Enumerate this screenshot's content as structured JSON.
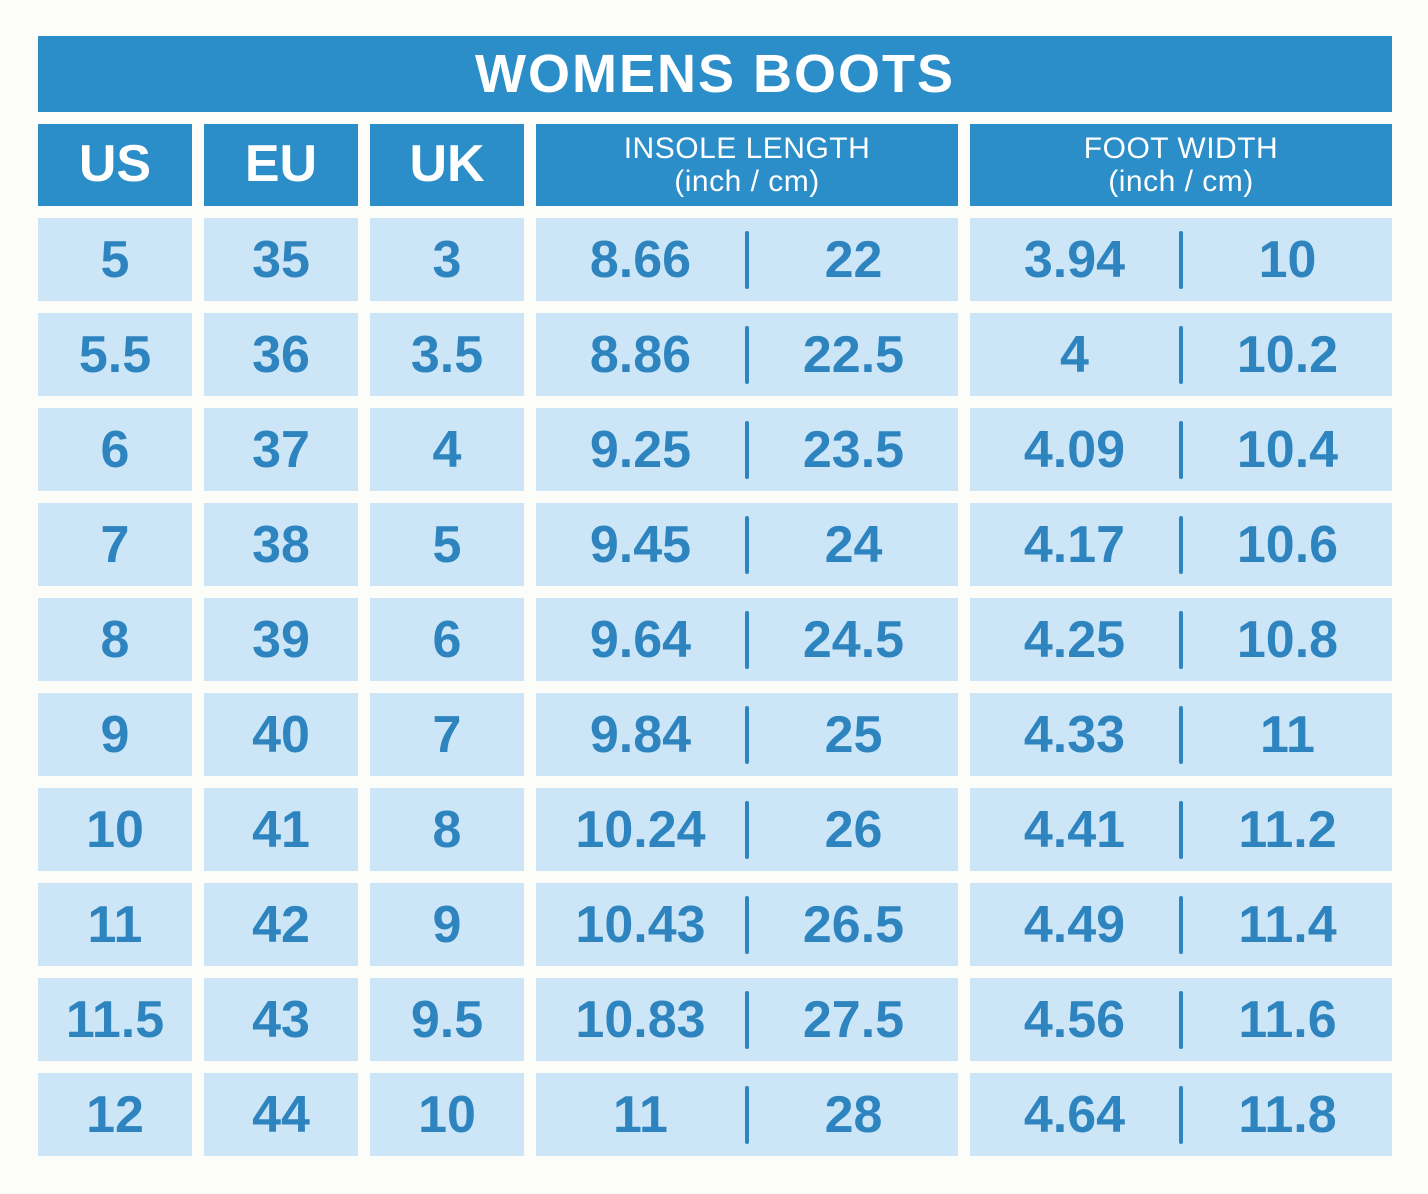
{
  "chart_data": {
    "type": "table",
    "title": "WOMENS BOOTS",
    "columns": [
      "US",
      "EU",
      "UK",
      "INSOLE LENGTH (inch / cm)",
      "FOOT WIDTH (inch / cm)"
    ],
    "rows": [
      [
        "5",
        "35",
        "3",
        "8.66",
        "22",
        "3.94",
        "10"
      ],
      [
        "5.5",
        "36",
        "3.5",
        "8.86",
        "22.5",
        "4",
        "10.2"
      ],
      [
        "6",
        "37",
        "4",
        "9.25",
        "23.5",
        "4.09",
        "10.4"
      ],
      [
        "7",
        "38",
        "5",
        "9.45",
        "24",
        "4.17",
        "10.6"
      ],
      [
        "8",
        "39",
        "6",
        "9.64",
        "24.5",
        "4.25",
        "10.8"
      ],
      [
        "9",
        "40",
        "7",
        "9.84",
        "25",
        "4.33",
        "11"
      ],
      [
        "10",
        "41",
        "8",
        "10.24",
        "26",
        "4.41",
        "11.2"
      ],
      [
        "11",
        "42",
        "9",
        "10.43",
        "26.5",
        "4.49",
        "11.4"
      ],
      [
        "11.5",
        "43",
        "9.5",
        "10.83",
        "27.5",
        "4.56",
        "11.6"
      ],
      [
        "12",
        "44",
        "10",
        "11",
        "28",
        "4.64",
        "11.8"
      ]
    ]
  },
  "table": {
    "headers": {
      "us": "US",
      "eu": "EU",
      "uk": "UK",
      "insole": {
        "line1": "INSOLE LENGTH",
        "line2": "(inch / cm)"
      },
      "foot": {
        "line1": "FOOT WIDTH",
        "line2": "(inch / cm)"
      }
    },
    "rows": [
      {
        "us": "5",
        "eu": "35",
        "uk": "3",
        "insole_inch": "8.66",
        "insole_cm": "22",
        "foot_inch": "3.94",
        "foot_cm": "10"
      },
      {
        "us": "5.5",
        "eu": "36",
        "uk": "3.5",
        "insole_inch": "8.86",
        "insole_cm": "22.5",
        "foot_inch": "4",
        "foot_cm": "10.2"
      },
      {
        "us": "6",
        "eu": "37",
        "uk": "4",
        "insole_inch": "9.25",
        "insole_cm": "23.5",
        "foot_inch": "4.09",
        "foot_cm": "10.4"
      },
      {
        "us": "7",
        "eu": "38",
        "uk": "5",
        "insole_inch": "9.45",
        "insole_cm": "24",
        "foot_inch": "4.17",
        "foot_cm": "10.6"
      },
      {
        "us": "8",
        "eu": "39",
        "uk": "6",
        "insole_inch": "9.64",
        "insole_cm": "24.5",
        "foot_inch": "4.25",
        "foot_cm": "10.8"
      },
      {
        "us": "9",
        "eu": "40",
        "uk": "7",
        "insole_inch": "9.84",
        "insole_cm": "25",
        "foot_inch": "4.33",
        "foot_cm": "11"
      },
      {
        "us": "10",
        "eu": "41",
        "uk": "8",
        "insole_inch": "10.24",
        "insole_cm": "26",
        "foot_inch": "4.41",
        "foot_cm": "11.2"
      },
      {
        "us": "11",
        "eu": "42",
        "uk": "9",
        "insole_inch": "10.43",
        "insole_cm": "26.5",
        "foot_inch": "4.49",
        "foot_cm": "11.4"
      },
      {
        "us": "11.5",
        "eu": "43",
        "uk": "9.5",
        "insole_inch": "10.83",
        "insole_cm": "27.5",
        "foot_inch": "4.56",
        "foot_cm": "11.6"
      },
      {
        "us": "12",
        "eu": "44",
        "uk": "10",
        "insole_inch": "11",
        "insole_cm": "28",
        "foot_inch": "4.64",
        "foot_cm": "11.8"
      }
    ],
    "colors": {
      "header_blue": "#2b8ec8",
      "cell_light_blue": "#cde6f7",
      "value_text_blue": "#2d84be",
      "header_text": "#ffffff"
    }
  }
}
